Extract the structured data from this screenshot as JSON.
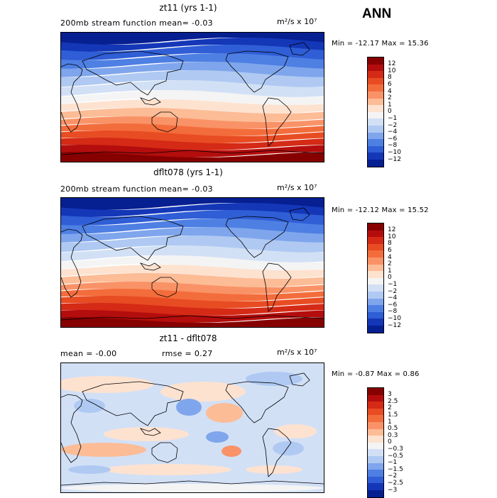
{
  "season": "ANN",
  "panels": [
    {
      "id": "top",
      "title": "zt11 (yrs 1-1)",
      "subtitle": "200mb stream function  mean=  -0.03",
      "units": "m²/s x 10⁷",
      "minmax": "Min = -12.17 Max =  15.36",
      "colorbar_labels": [
        "12",
        "10",
        "8",
        "6",
        "4",
        "2",
        "1",
        "0",
        "−1",
        "−2",
        "−4",
        "−6",
        "−8",
        "−10",
        "−12"
      ],
      "colorbar_colors": [
        "#870000",
        "#b40d0d",
        "#d42a16",
        "#e84c23",
        "#f36d3c",
        "#f99367",
        "#fcbc96",
        "#fde2d0",
        "#f4f4f4",
        "#d2e0f6",
        "#afc9f2",
        "#7fa6ec",
        "#4e7fe3",
        "#2f5ed6",
        "#1437b8",
        "#061f91"
      ],
      "field_type": "absolute"
    },
    {
      "id": "middle",
      "title": "dflt078 (yrs 1-1)",
      "subtitle": "200mb stream function  mean=  -0.03",
      "units": "m²/s x 10⁷",
      "minmax": "Min = -12.12 Max =  15.52",
      "colorbar_labels": [
        "12",
        "10",
        "8",
        "6",
        "4",
        "2",
        "1",
        "0",
        "−1",
        "−2",
        "−4",
        "−6",
        "−8",
        "−10",
        "−12"
      ],
      "colorbar_colors": [
        "#870000",
        "#b40d0d",
        "#d42a16",
        "#e84c23",
        "#f36d3c",
        "#f99367",
        "#fcbc96",
        "#fde2d0",
        "#f4f4f4",
        "#d2e0f6",
        "#afc9f2",
        "#7fa6ec",
        "#4e7fe3",
        "#2f5ed6",
        "#1437b8",
        "#061f91"
      ],
      "field_type": "absolute"
    },
    {
      "id": "bottom",
      "title": "zt11 - dflt078",
      "subtitle_mean": "mean =  -0.00",
      "subtitle_rmse": "rmse =  0.27",
      "units": "m²/s x 10⁷",
      "minmax": "Min = -0.87 Max =  0.86",
      "colorbar_labels": [
        "3",
        "2.5",
        "2",
        "1.5",
        "1",
        "0.5",
        "0.3",
        "0",
        "−0.3",
        "−0.5",
        "−1",
        "−1.5",
        "−2",
        "−2.5",
        "−3"
      ],
      "colorbar_colors": [
        "#870000",
        "#b40d0d",
        "#d42a16",
        "#e84c23",
        "#f36d3c",
        "#f99367",
        "#fcbc96",
        "#fde2d0",
        "#f4f4f4",
        "#d2e0f6",
        "#afc9f2",
        "#7fa6ec",
        "#4e7fe3",
        "#2f5ed6",
        "#1437b8",
        "#061f91"
      ],
      "field_type": "difference"
    }
  ]
}
